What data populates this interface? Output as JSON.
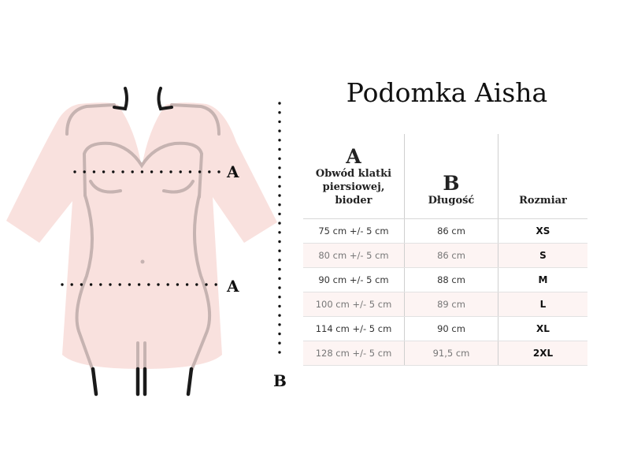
{
  "title": "Podomka Aisha",
  "diagram": {
    "label_a_top": "A",
    "label_a_bottom": "A",
    "label_b": "B"
  },
  "colors": {
    "robe": "#f9e1de",
    "body_line": "#c6b3b1",
    "legs": "#1a1a1a"
  },
  "table": {
    "headers": [
      {
        "letter": "A",
        "label": "Obwód klatki piersiowej, bioder"
      },
      {
        "letter": "B",
        "label": "Długość"
      },
      {
        "letter": "",
        "label": "Rozmiar"
      }
    ],
    "rows": [
      [
        "75  cm +/-  5 cm",
        "86 cm",
        "XS"
      ],
      [
        "80 cm +/-  5 cm",
        "86 cm",
        "S"
      ],
      [
        "90 cm +/-  5 cm",
        "88 cm",
        "M"
      ],
      [
        "100 cm +/-  5 cm",
        "89 cm",
        "L"
      ],
      [
        "114 cm +/-  5 cm",
        "90 cm",
        "XL"
      ],
      [
        "128 cm +/-  5 cm",
        "91,5 cm",
        "2XL"
      ]
    ]
  }
}
